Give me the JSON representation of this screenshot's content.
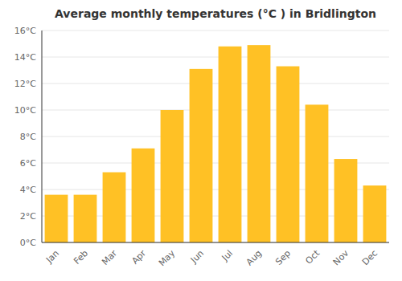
{
  "chart_data": {
    "type": "bar",
    "title": "Average monthly temperatures (°C ) in Bridlington",
    "categories": [
      "Jan",
      "Feb",
      "Mar",
      "Apr",
      "May",
      "Jun",
      "Jul",
      "Aug",
      "Sep",
      "Oct",
      "Nov",
      "Dec"
    ],
    "values": [
      3.6,
      3.6,
      5.3,
      7.1,
      10.0,
      13.1,
      14.8,
      14.9,
      13.3,
      10.4,
      6.3,
      4.3
    ],
    "color": "#FFC125",
    "ylim": [
      0,
      16
    ],
    "yticks": [
      {
        "value": 0,
        "label": "0°C"
      },
      {
        "value": 2,
        "label": "2°C"
      },
      {
        "value": 4,
        "label": "4°C"
      },
      {
        "value": 6,
        "label": "6°C"
      },
      {
        "value": 8,
        "label": "8°C"
      },
      {
        "value": 10,
        "label": "10°C"
      },
      {
        "value": 12,
        "label": "12°C"
      },
      {
        "value": 14,
        "label": "14°C"
      },
      {
        "value": 16,
        "label": "16°C"
      }
    ],
    "grid": true
  }
}
